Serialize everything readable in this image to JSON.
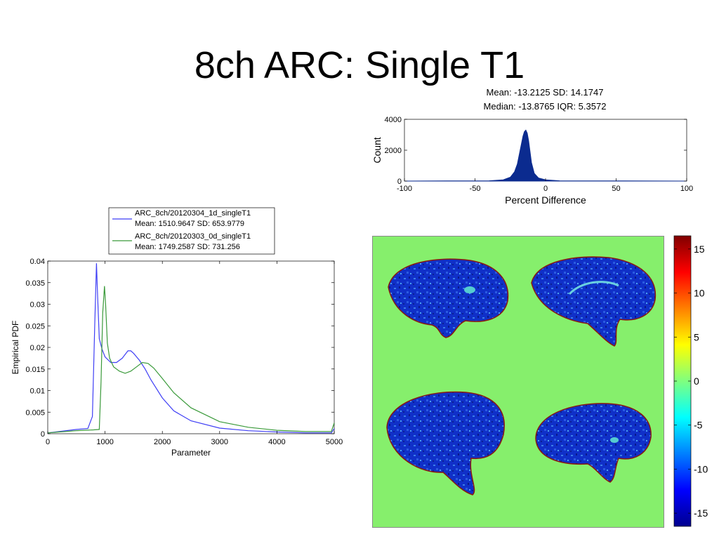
{
  "slide": {
    "title": "8ch ARC: Single T1"
  },
  "colors": {
    "series_blue": "#3f3ff5",
    "series_green": "#3a9a3a",
    "map_background": "#86ef6c",
    "histogram_fill": "#0b2b8f"
  },
  "chart_data": [
    {
      "type": "area",
      "name": "histogram",
      "title_lines": [
        "Mean: -13.2125 SD: 14.1747",
        "Median: -13.8765 IQR: 5.3572"
      ],
      "xlabel": "Percent Difference",
      "ylabel": "Count",
      "xlim": [
        -100,
        100
      ],
      "ylim": [
        0,
        4000
      ],
      "xticks": [
        "-100",
        "-50",
        "0",
        "50",
        "100"
      ],
      "yticks": [
        "0",
        "2000",
        "4000"
      ],
      "x": [
        -100,
        -40,
        -30,
        -25,
        -22,
        -20,
        -18,
        -16,
        -15,
        -14,
        -13,
        -12,
        -11,
        -10,
        -8,
        -5,
        0,
        10,
        100
      ],
      "values": [
        0,
        20,
        80,
        250,
        600,
        1100,
        2000,
        2900,
        3200,
        3300,
        3100,
        2600,
        1900,
        1200,
        500,
        200,
        80,
        20,
        0
      ]
    },
    {
      "type": "line",
      "name": "pdf",
      "xlabel": "Parameter",
      "ylabel": "Empirical PDF",
      "xlim": [
        0,
        5000
      ],
      "ylim": [
        0,
        0.04
      ],
      "xticks": [
        "0",
        "1000",
        "2000",
        "3000",
        "4000",
        "5000"
      ],
      "yticks": [
        "0",
        "0.005",
        "0.01",
        "0.015",
        "0.02",
        "0.025",
        "0.03",
        "0.035",
        "0.04"
      ],
      "legend": "top",
      "series": [
        {
          "name": "ARC_8ch/20120304_1d_singleT1",
          "stats": "Mean: 1510.9647 SD: 653.9779",
          "x": [
            0,
            200,
            500,
            700,
            780,
            820,
            850,
            870,
            900,
            950,
            1000,
            1100,
            1200,
            1300,
            1400,
            1450,
            1500,
            1600,
            1700,
            1800,
            2000,
            2200,
            2500,
            3000,
            3500,
            4000,
            4500,
            4950,
            5000
          ],
          "values": [
            0.0002,
            0.0005,
            0.001,
            0.0012,
            0.004,
            0.025,
            0.0395,
            0.032,
            0.022,
            0.0195,
            0.0178,
            0.0165,
            0.0165,
            0.0175,
            0.0192,
            0.0192,
            0.0186,
            0.017,
            0.015,
            0.0125,
            0.0083,
            0.0053,
            0.003,
            0.0013,
            0.0007,
            0.0004,
            0.0002,
            0.0002,
            0.0012
          ]
        },
        {
          "name": "ARC_8ch/20120303_0d_singleT1",
          "stats": "Mean: 1749.2587 SD: 731.256",
          "x": [
            0,
            200,
            500,
            800,
            900,
            930,
            960,
            990,
            1010,
            1040,
            1080,
            1150,
            1250,
            1350,
            1450,
            1550,
            1650,
            1750,
            1850,
            2000,
            2200,
            2500,
            3000,
            3500,
            4000,
            4500,
            4950,
            5000
          ],
          "values": [
            0.0002,
            0.0004,
            0.0007,
            0.0009,
            0.001,
            0.012,
            0.028,
            0.0342,
            0.03,
            0.021,
            0.0175,
            0.0155,
            0.0145,
            0.014,
            0.0145,
            0.0155,
            0.0165,
            0.0163,
            0.0152,
            0.0128,
            0.0095,
            0.006,
            0.0028,
            0.0015,
            0.0008,
            0.0005,
            0.0005,
            0.0025
          ]
        }
      ]
    },
    {
      "type": "heatmap",
      "name": "colorbar",
      "vlim": [
        -16.5,
        16.5
      ],
      "ticks": [
        "15",
        "10",
        "5",
        "0",
        "-5",
        "-10",
        "-15"
      ],
      "tick_values": [
        15,
        10,
        5,
        0,
        -5,
        -10,
        -15
      ]
    }
  ]
}
